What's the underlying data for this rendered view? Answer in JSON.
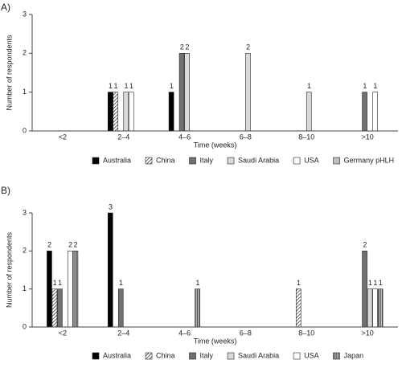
{
  "chart_data": [
    {
      "type": "bar",
      "label": "A)",
      "xlabel": "Time (weeks)",
      "ylabel": "Number of respondents",
      "categories": [
        "<2",
        "2–4",
        "4–6",
        "6–8",
        "8–10",
        ">10"
      ],
      "series": [
        {
          "name": "Australia",
          "color": "#000000",
          "values": [
            null,
            1,
            1,
            null,
            null,
            null
          ]
        },
        {
          "name": "China",
          "color": "#ffffff",
          "hatch": "diagonal",
          "values": [
            null,
            1,
            null,
            null,
            null,
            null
          ]
        },
        {
          "name": "Italy",
          "color": "#707070",
          "values": [
            null,
            null,
            2,
            null,
            null,
            1
          ]
        },
        {
          "name": "Saudi Arabia",
          "color": "#d9d9d9",
          "values": [
            null,
            1,
            2,
            2,
            1,
            null
          ]
        },
        {
          "name": "USA",
          "color": "#ffffff",
          "values": [
            null,
            1,
            null,
            null,
            null,
            1
          ]
        },
        {
          "name": "Germany pHLH",
          "color": "#bfbfbf",
          "values": [
            null,
            null,
            null,
            null,
            null,
            null
          ]
        }
      ],
      "ylim": [
        0,
        3
      ],
      "yticks": [
        0,
        1,
        2,
        3
      ],
      "grid": false
    },
    {
      "type": "bar",
      "label": "B)",
      "xlabel": "Time (weeks)",
      "ylabel": "Number of respondents",
      "categories": [
        "<2",
        "2–4",
        "4–6",
        "6–8",
        "8–10",
        ">10"
      ],
      "series": [
        {
          "name": "Australia",
          "color": "#000000",
          "values": [
            2,
            3,
            null,
            null,
            null,
            null
          ]
        },
        {
          "name": "China",
          "color": "#ffffff",
          "hatch": "diagonal",
          "values": [
            1,
            null,
            null,
            null,
            1,
            null
          ]
        },
        {
          "name": "Italy",
          "color": "#707070",
          "values": [
            1,
            1,
            null,
            null,
            null,
            2
          ]
        },
        {
          "name": "Saudi Arabia",
          "color": "#d9d9d9",
          "values": [
            null,
            null,
            null,
            null,
            null,
            1
          ]
        },
        {
          "name": "USA",
          "color": "#ffffff",
          "values": [
            2,
            null,
            null,
            null,
            null,
            1
          ]
        },
        {
          "name": "Japan",
          "color": "#808080",
          "hatch": "vertical",
          "values": [
            2,
            null,
            1,
            null,
            null,
            1
          ]
        }
      ],
      "ylim": [
        0,
        3
      ],
      "yticks": [
        0,
        1,
        2,
        3
      ],
      "grid": false
    }
  ]
}
